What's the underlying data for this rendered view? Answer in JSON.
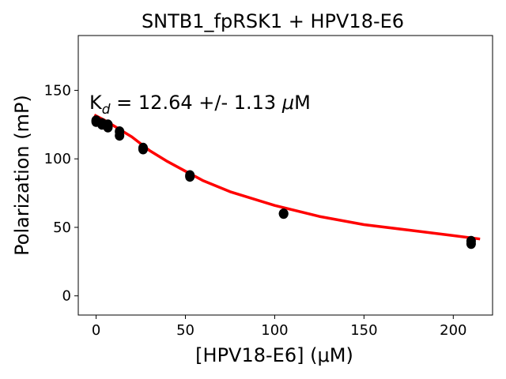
{
  "chart_data": {
    "type": "scatter",
    "title": "SNTB1_fpRSK1 + HPV18-E6",
    "xlabel": "[HPV18-E6] (μM)",
    "ylabel": "Polarization (mP)",
    "xlim": [
      -10,
      222
    ],
    "ylim": [
      -14,
      190
    ],
    "xticks": [
      0,
      50,
      100,
      150,
      200
    ],
    "yticks": [
      0,
      50,
      100,
      150
    ],
    "grid": false,
    "annotation": {
      "prefix": "K",
      "subscript": "d",
      "value_text": " = 12.64 +/- 1.13 ",
      "mu": "μ",
      "unit": "M"
    },
    "series": [
      {
        "kind": "points",
        "color": "#000000",
        "x": [
          0,
          0,
          3.3,
          3.3,
          6.6,
          6.6,
          13.1,
          13.1,
          26.3,
          26.3,
          52.5,
          52.5,
          105,
          105,
          210,
          210
        ],
        "y": [
          128,
          127,
          126,
          125,
          125,
          123,
          120,
          117,
          108,
          107,
          88,
          87,
          60,
          60,
          40,
          38
        ]
      },
      {
        "kind": "fit",
        "color": "#ff0000",
        "x": [
          -1,
          5,
          10,
          15,
          20,
          25,
          30,
          40,
          50,
          60,
          75,
          100,
          125,
          150,
          175,
          200,
          215
        ],
        "y": [
          132,
          128,
          124,
          120,
          116,
          111,
          106,
          98,
          91,
          84,
          76,
          66,
          58,
          52,
          48,
          44,
          41.5
        ]
      }
    ]
  }
}
